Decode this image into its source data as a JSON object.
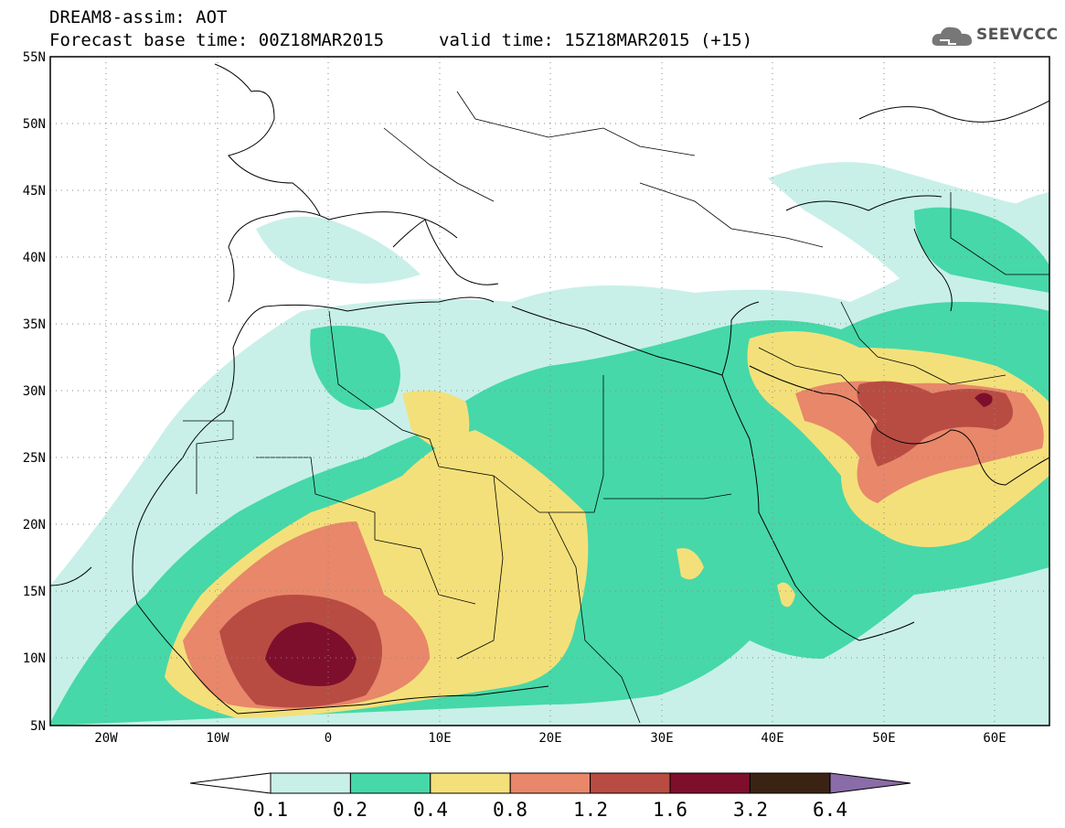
{
  "header": {
    "line1": "DREAM8-assim: AOT",
    "line2": "Forecast base time: 00Z18MAR2015",
    "line3": "valid time: 15Z18MAR2015 (+15)"
  },
  "logo": {
    "text": "SEEVCCC",
    "icon": "cloud-icon"
  },
  "axes": {
    "lat_labels": [
      "55N",
      "50N",
      "45N",
      "40N",
      "35N",
      "30N",
      "25N",
      "20N",
      "15N",
      "10N",
      "5N"
    ],
    "lon_labels": [
      "20W",
      "10W",
      "0",
      "10E",
      "20E",
      "30E",
      "40E",
      "50E",
      "60E"
    ],
    "lat_range": [
      5,
      55
    ],
    "lon_range": [
      -25,
      65
    ]
  },
  "colorbar": {
    "labels": [
      "0.1",
      "0.2",
      "0.4",
      "0.8",
      "1.2",
      "1.6",
      "3.2",
      "6.4"
    ],
    "colors": [
      "#c8f0e8",
      "#46d8a8",
      "#f4e07a",
      "#e8876a",
      "#b84c42",
      "#7e0f2c",
      "#3b2314",
      "#8a6ca8"
    ]
  }
}
